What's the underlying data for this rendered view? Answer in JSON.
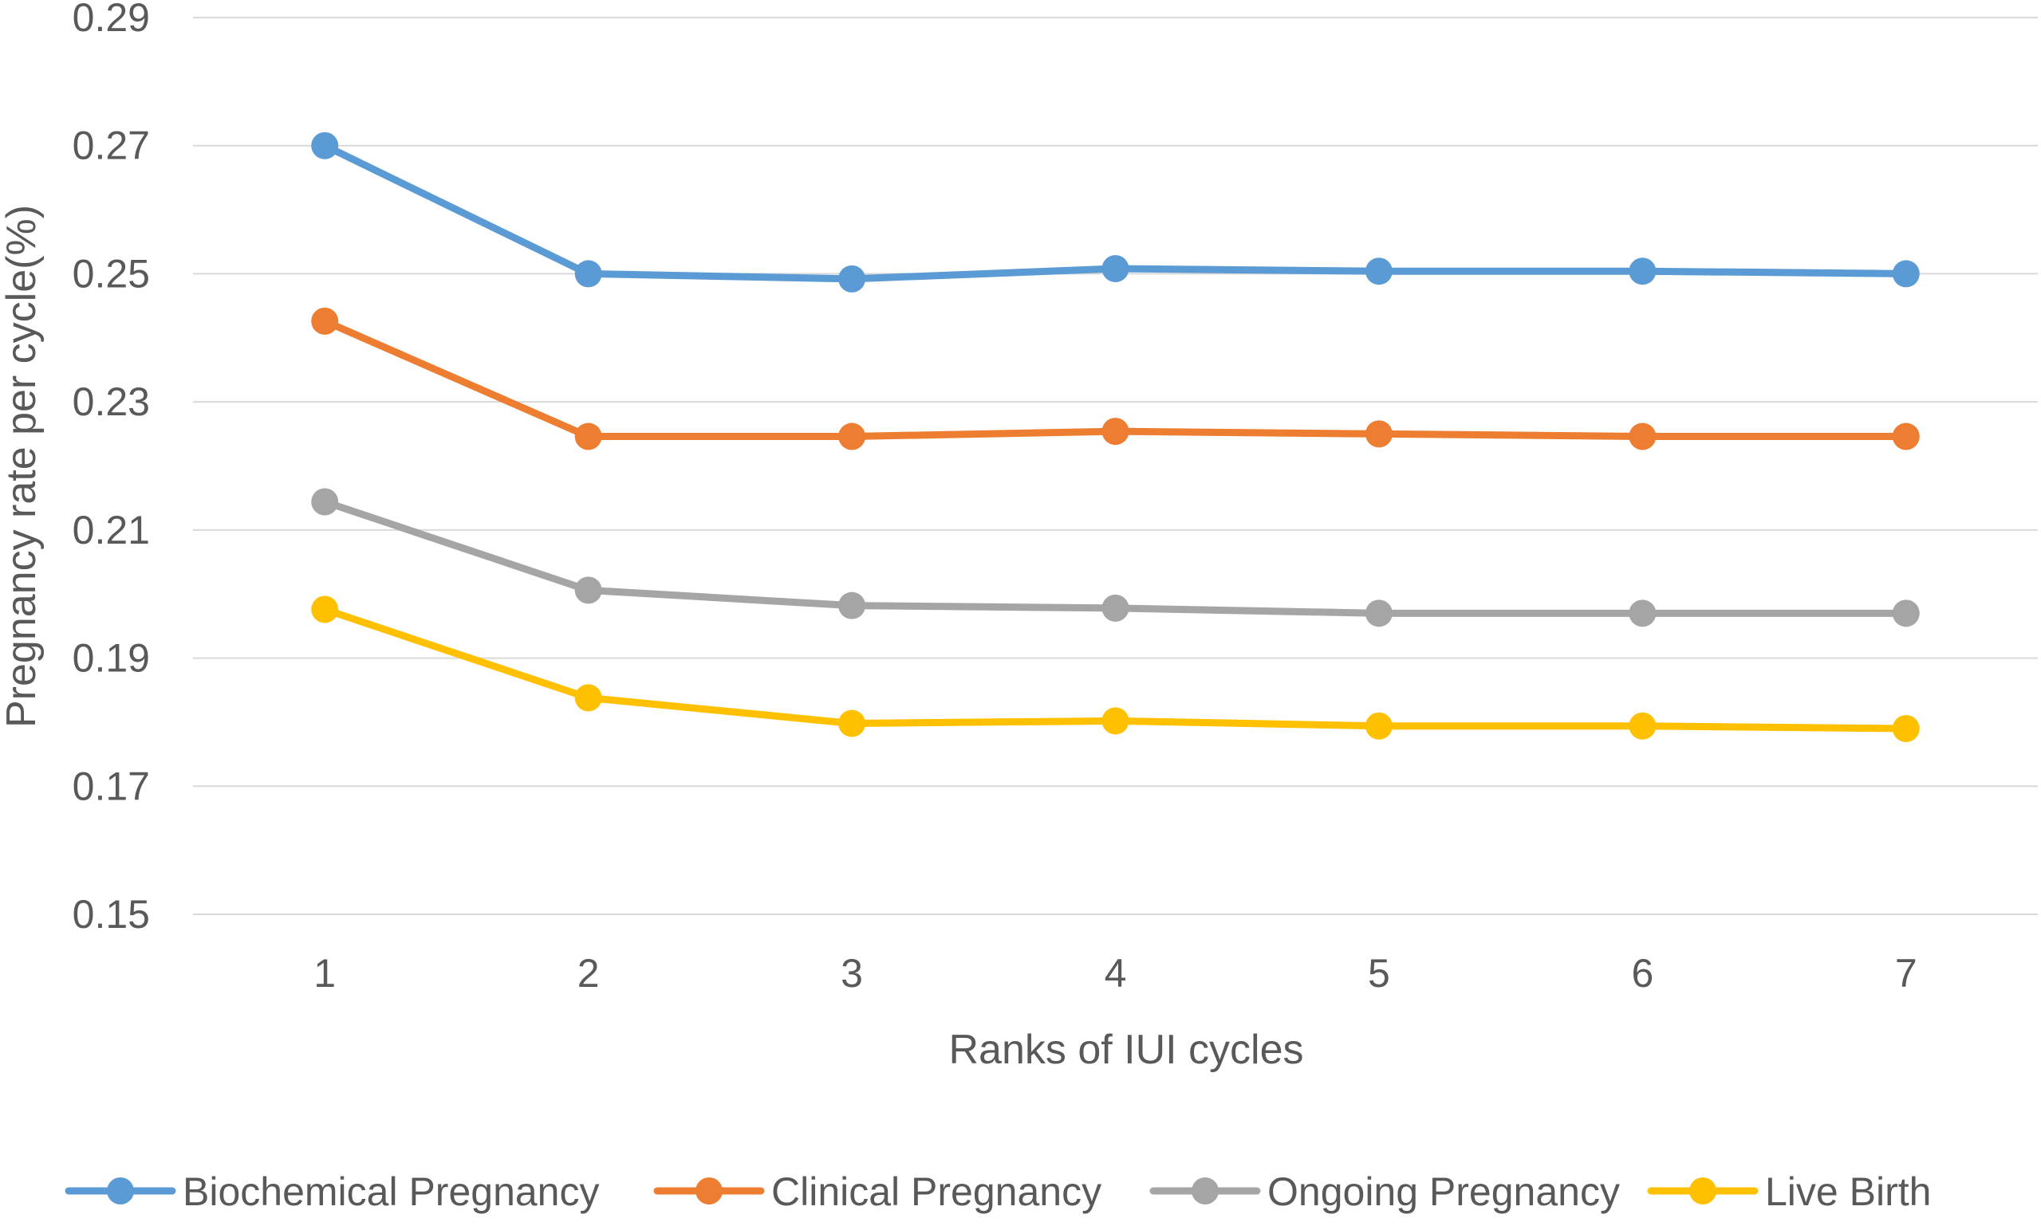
{
  "chart_data": {
    "type": "line",
    "title": "",
    "xlabel": "Ranks of IUI cycles",
    "ylabel": "Pregnancy rate per cycle(%)",
    "categories": [
      "1",
      "2",
      "3",
      "4",
      "5",
      "6",
      "7"
    ],
    "ylim": [
      0.15,
      0.29
    ],
    "yticks": [
      "0.15",
      "0.17",
      "0.19",
      "0.21",
      "0.23",
      "0.25",
      "0.27",
      "0.29"
    ],
    "grid": true,
    "legend_position": "bottom",
    "series": [
      {
        "name": "Biochemical Pregnancy",
        "color": "#5b9bd5",
        "values": [
          0.27,
          0.25,
          0.2492,
          0.2508,
          0.2504,
          0.2504,
          0.25
        ]
      },
      {
        "name": "Clinical Pregnancy",
        "color": "#ed7d31",
        "values": [
          0.2426,
          0.2246,
          0.2246,
          0.2254,
          0.225,
          0.2246,
          0.2246
        ]
      },
      {
        "name": "Ongoing Pregnancy",
        "color": "#a5a5a5",
        "values": [
          0.2144,
          0.2006,
          0.1982,
          0.1978,
          0.197,
          0.197,
          0.197
        ]
      },
      {
        "name": "Live Birth",
        "color": "#ffc000",
        "values": [
          0.1976,
          0.1838,
          0.1798,
          0.1802,
          0.1794,
          0.1794,
          0.179
        ]
      }
    ]
  }
}
